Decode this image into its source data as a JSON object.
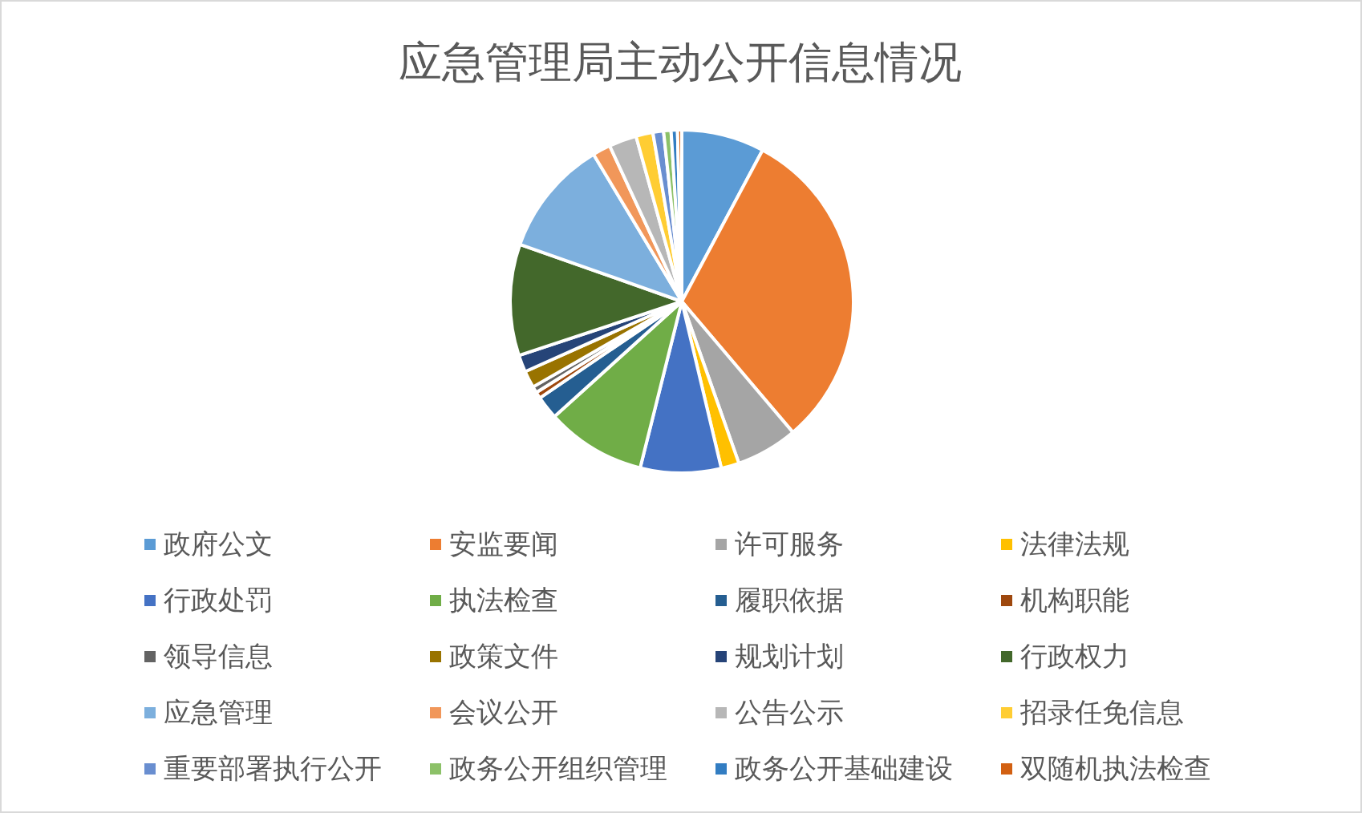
{
  "chart_data": {
    "type": "pie",
    "title": "应急管理局主动公开信息情况",
    "categories": [
      "政府公文",
      "安监要闻",
      "许可服务",
      "法律法规",
      "行政处罚",
      "执法检查",
      "履职依据",
      "机构职能",
      "领导信息",
      "政策文件",
      "规划计划",
      "行政权力",
      "应急管理",
      "会议公开",
      "公告公示",
      "招录任免信息",
      "重要部署执行公开",
      "政务公开组织管理",
      "政务公开基础建设",
      "双随机执法检查"
    ],
    "values": [
      7.8,
      31,
      5.8,
      1.7,
      7.6,
      9.4,
      2.2,
      0.6,
      0.6,
      1.6,
      1.6,
      10.5,
      11,
      1.7,
      2.6,
      1.6,
      1.0,
      0.7,
      0.6,
      0.4
    ],
    "colors": [
      "#5b9bd5",
      "#ed7d31",
      "#a5a5a5",
      "#ffc000",
      "#4472c4",
      "#70ad47",
      "#255e91",
      "#9e480e",
      "#636363",
      "#997300",
      "#264478",
      "#43682b",
      "#7cafdd",
      "#f1975a",
      "#b7b7b7",
      "#ffcd33",
      "#698ed0",
      "#8cc168",
      "#327dc2",
      "#d26012"
    ],
    "legend": "bottom"
  }
}
